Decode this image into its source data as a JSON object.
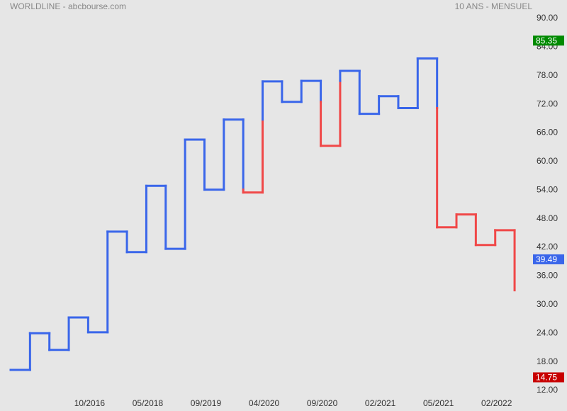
{
  "chart_data": {
    "type": "kagi",
    "title": "WORLDLINE - abcbourse.com",
    "subtitle": "10 ANS - MENSUEL",
    "values": [
      16.3,
      24.0,
      20.5,
      27.3,
      24.2,
      45.3,
      41.0,
      54.9,
      41.7,
      64.6,
      54.1,
      68.8,
      53.5,
      76.8,
      72.5,
      76.9,
      63.3,
      79.0,
      70.0,
      73.7,
      71.2,
      81.6,
      46.2,
      48.9,
      42.5,
      45.6,
      33.0
    ],
    "yang_color": "#3a66ea",
    "yin_color": "#f04848",
    "xlim": [
      0,
      26.4
    ],
    "xticks": [
      {
        "value": 4,
        "label": "10/2016"
      },
      {
        "value": 7,
        "label": "05/2018"
      },
      {
        "value": 10,
        "label": "09/2019"
      },
      {
        "value": 13,
        "label": "04/2020"
      },
      {
        "value": 16,
        "label": "09/2020"
      },
      {
        "value": 19,
        "label": "02/2021"
      },
      {
        "value": 22,
        "label": "05/2021"
      },
      {
        "value": 25,
        "label": "02/2022"
      }
    ],
    "ylim": [
      12,
      90
    ],
    "yticks": [
      {
        "value": 12,
        "label": "12.00"
      },
      {
        "value": 18,
        "label": "18.00"
      },
      {
        "value": 24,
        "label": "24.00"
      },
      {
        "value": 30,
        "label": "30.00"
      },
      {
        "value": 36,
        "label": "36.00"
      },
      {
        "value": 42,
        "label": "42.00"
      },
      {
        "value": 48,
        "label": "48.00"
      },
      {
        "value": 54,
        "label": "54.00"
      },
      {
        "value": 60,
        "label": "60.00"
      },
      {
        "value": 66,
        "label": "66.00"
      },
      {
        "value": 72,
        "label": "72.00"
      },
      {
        "value": 78,
        "label": "78.00"
      },
      {
        "value": 84,
        "label": "84.00"
      },
      {
        "value": 90,
        "label": "90.00"
      }
    ],
    "markers": [
      {
        "value": 85.35,
        "color": "#008a00"
      },
      {
        "value": 39.49,
        "color": "#3a66ea"
      },
      {
        "value": 14.75,
        "color": "#c80000"
      }
    ]
  }
}
